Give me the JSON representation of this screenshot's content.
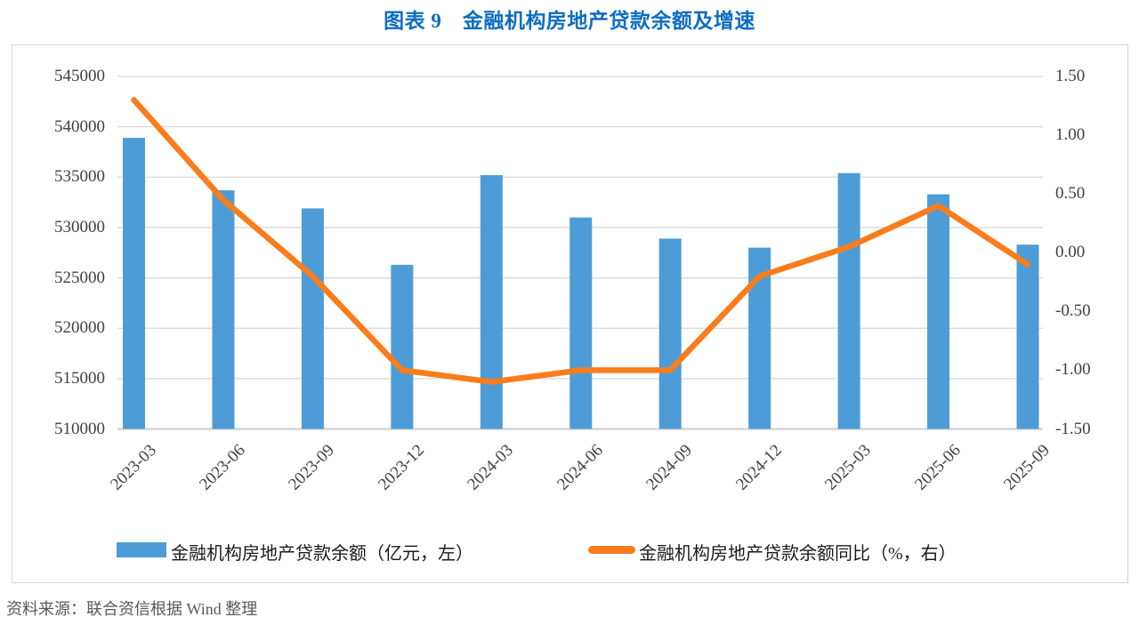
{
  "page": {
    "title": "图表 9　金融机构房地产贷款余额及增速",
    "source_note": "资料来源：联合资信根据 Wind 整理"
  },
  "chart_data": {
    "type": "combo",
    "title": "图表 9　金融机构房地产贷款余额及增速",
    "categories": [
      "2023-03",
      "2023-06",
      "2023-09",
      "2023-12",
      "2024-03",
      "2024-06",
      "2024-09",
      "2024-12",
      "2025-03",
      "2025-06",
      "2025-09"
    ],
    "series": [
      {
        "name": "金融机构房地产贷款余额（亿元，左）",
        "type": "bar",
        "axis": "left",
        "color": "#4d9cd7",
        "values": [
          538900,
          533700,
          531900,
          526300,
          535200,
          531000,
          528900,
          528000,
          535400,
          533300,
          528300
        ]
      },
      {
        "name": "金融机构房地产贷款余额同比（%，右）",
        "type": "line",
        "axis": "right",
        "color": "#f97d1c",
        "values": [
          1.3,
          0.45,
          -0.2,
          -1.0,
          -1.1,
          -1.0,
          -1.0,
          -0.2,
          0.05,
          0.4,
          -0.1
        ]
      }
    ],
    "left_axis": {
      "min": 510000,
      "max": 545000,
      "step": 5000,
      "ticks": [
        "545000",
        "540000",
        "535000",
        "530000",
        "525000",
        "520000",
        "515000",
        "510000"
      ]
    },
    "right_axis": {
      "min": -1.5,
      "max": 1.5,
      "step": 0.5,
      "ticks": [
        "1.50",
        "1.00",
        "0.50",
        "0.00",
        "-0.50",
        "-1.00",
        "-1.50"
      ]
    },
    "grid": true,
    "legend_position": "bottom",
    "colors": {
      "title": "#0d6dc1",
      "gridline": "#d9d9d9",
      "axis_line": "#d6d6d6",
      "axis_text": "#404040",
      "legend_text": "#1a1a1a",
      "source_text": "#595959",
      "frame_border": "#d3d3d3"
    }
  }
}
